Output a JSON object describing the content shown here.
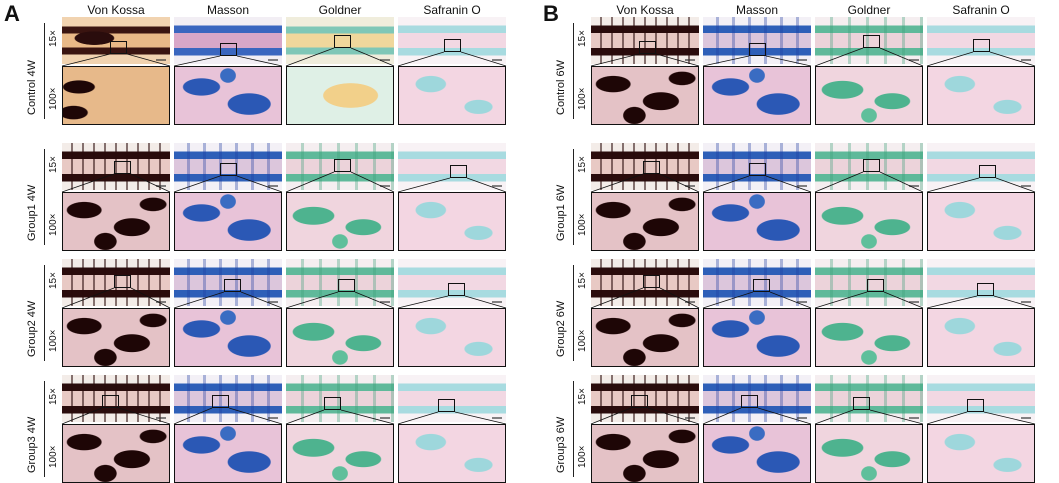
{
  "panels": [
    {
      "label": "A",
      "columns": [
        "Von Kossa",
        "Masson",
        "Goldner",
        "Safranin O"
      ],
      "groups": [
        "Control 4W",
        "Group1 4W",
        "Group2 4W",
        "Group3 4W"
      ],
      "magnifications": [
        "15×",
        "100×"
      ]
    },
    {
      "label": "B",
      "columns": [
        "Von Kossa",
        "Masson",
        "Goldner",
        "Safranin O"
      ],
      "groups": [
        "Control 6W",
        "Group1 6W",
        "Group2 6W",
        "Group3 6W"
      ],
      "magnifications": [
        "15×",
        "100×"
      ]
    }
  ],
  "stain_colors": {
    "von_kossa": "#2a0c0c",
    "masson": "#2e5fb8",
    "goldner": "#5fb99a",
    "safranin_o": "#a8dbe0"
  }
}
